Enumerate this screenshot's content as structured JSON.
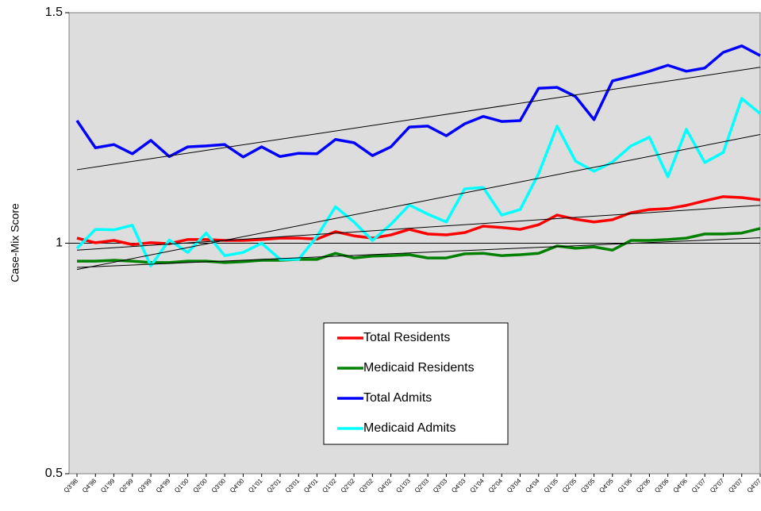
{
  "chart_data": {
    "type": "line",
    "y_label": "Case-Mix Score",
    "categories": [
      "Q3'98",
      "Q4'98",
      "Q1'99",
      "Q2'99",
      "Q3'99",
      "Q4'99",
      "Q1'00",
      "Q2'00",
      "Q3'00",
      "Q4'00",
      "Q1'01",
      "Q2'01",
      "Q3'01",
      "Q4'01",
      "Q1'02",
      "Q2'02",
      "Q3'02",
      "Q4'02",
      "Q1'03",
      "Q2'03",
      "Q3'03",
      "Q4'03",
      "Q1'04",
      "Q2'04",
      "Q3'04",
      "Q4'04",
      "Q1'05",
      "Q2'05",
      "Q3'05",
      "Q4'05",
      "Q1'06",
      "Q2'06",
      "Q3'06",
      "Q4'06",
      "Q1'07",
      "Q2'07",
      "Q3'07",
      "Q4'07"
    ],
    "series": [
      {
        "name": "Total Residents",
        "color": "#ff0000",
        "values": [
          1.011,
          1.001,
          1.006,
          0.997,
          1.001,
          0.999,
          1.008,
          1.008,
          1.006,
          1.006,
          1.008,
          1.011,
          1.011,
          1.009,
          1.025,
          1.016,
          1.011,
          1.018,
          1.03,
          1.02,
          1.018,
          1.023,
          1.037,
          1.034,
          1.03,
          1.04,
          1.061,
          1.052,
          1.046,
          1.051,
          1.066,
          1.073,
          1.075,
          1.082,
          1.092,
          1.101,
          1.099,
          1.094
        ]
      },
      {
        "name": "Medicaid Residents",
        "color": "#008000",
        "values": [
          0.961,
          0.961,
          0.963,
          0.961,
          0.958,
          0.958,
          0.961,
          0.961,
          0.958,
          0.96,
          0.963,
          0.963,
          0.965,
          0.965,
          0.978,
          0.968,
          0.972,
          0.973,
          0.975,
          0.968,
          0.968,
          0.977,
          0.978,
          0.973,
          0.975,
          0.978,
          0.994,
          0.989,
          0.992,
          0.985,
          1.006,
          1.006,
          1.008,
          1.011,
          1.02,
          1.02,
          1.022,
          1.032
        ]
      },
      {
        "name": "Total Admits",
        "color": "#0000ff",
        "values": [
          1.266,
          1.207,
          1.214,
          1.194,
          1.223,
          1.188,
          1.209,
          1.211,
          1.214,
          1.187,
          1.209,
          1.188,
          1.195,
          1.194,
          1.225,
          1.218,
          1.19,
          1.209,
          1.252,
          1.254,
          1.233,
          1.259,
          1.275,
          1.264,
          1.266,
          1.336,
          1.338,
          1.318,
          1.268,
          1.352,
          1.362,
          1.373,
          1.386,
          1.373,
          1.38,
          1.414,
          1.428,
          1.407
        ]
      },
      {
        "name": "Medicaid Admits",
        "color": "#00ffff",
        "values": [
          0.989,
          1.03,
          1.029,
          1.039,
          0.951,
          1.007,
          0.98,
          1.022,
          0.973,
          0.98,
          1.0,
          0.965,
          0.965,
          1.015,
          1.079,
          1.046,
          1.006,
          1.041,
          1.083,
          1.063,
          1.046,
          1.118,
          1.121,
          1.061,
          1.073,
          1.151,
          1.254,
          1.178,
          1.156,
          1.176,
          1.211,
          1.23,
          1.144,
          1.247,
          1.175,
          1.197,
          1.314,
          1.281
        ]
      }
    ],
    "ylim": [
      0.5,
      1.5
    ],
    "yticks": [
      0.5,
      1,
      1.5
    ],
    "reference_lines": [
      1
    ],
    "trendlines": true,
    "legend": "lower center",
    "background": "#dddddd"
  }
}
